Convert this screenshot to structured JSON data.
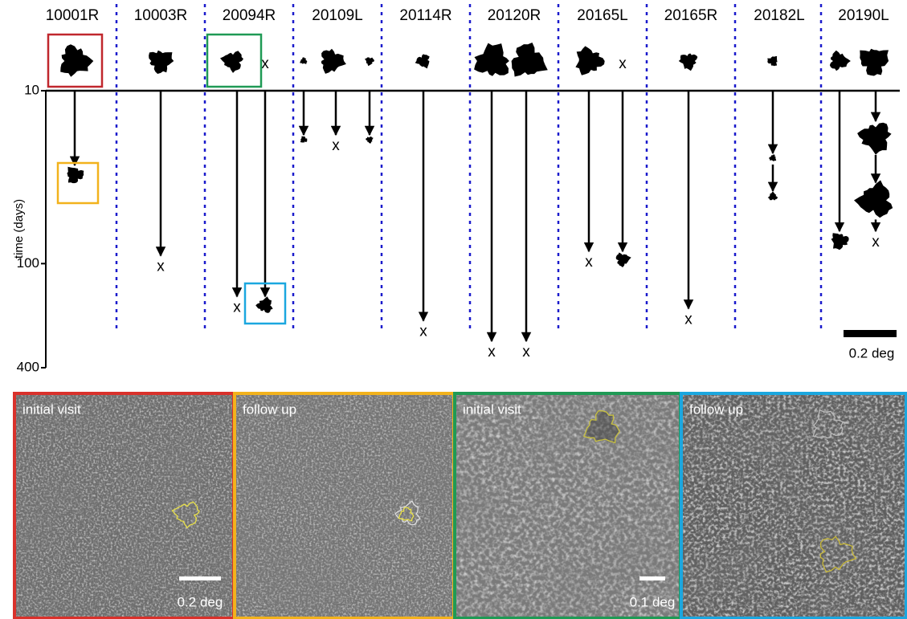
{
  "timeline": {
    "axis_label": "time (days)",
    "log_scale": true,
    "ylim": [
      10,
      400
    ],
    "yticks": [
      10,
      100,
      400
    ],
    "scale_bar": "0.2 deg",
    "columns": [
      {
        "label": "10001R",
        "tracks": [
          {
            "times": [
              27
            ]
          }
        ]
      },
      {
        "label": "10003R",
        "tracks": [
          {
            "times": [
              90
            ],
            "end_label": "x"
          }
        ]
      },
      {
        "label": "20094R",
        "tracks": [
          {
            "times": [
              155
            ],
            "end_label": "x"
          },
          {
            "times": [
              155
            ],
            "initial_label": "x"
          }
        ]
      },
      {
        "label": "20109L",
        "tracks": [
          {
            "times": [
              18
            ]
          },
          {
            "times": [
              18
            ],
            "end_label": "x"
          },
          {
            "times": [
              18
            ]
          }
        ]
      },
      {
        "label": "20114R",
        "tracks": [
          {
            "times": [
              214
            ],
            "end_label": "x"
          }
        ]
      },
      {
        "label": "20120R",
        "tracks": [
          {
            "times": [
              281
            ],
            "end_label": "x"
          },
          {
            "times": [
              281
            ],
            "end_label": "x"
          }
        ]
      },
      {
        "label": "20165L",
        "tracks": [
          {
            "times": [
              85
            ],
            "end_label": "x"
          },
          {
            "times": [
              85
            ],
            "initial_label": "x"
          }
        ]
      },
      {
        "label": "20165R",
        "tracks": [
          {
            "times": [
              182
            ],
            "end_label": "x"
          }
        ]
      },
      {
        "label": "20182L",
        "tracks": [
          {
            "times": [
              23,
              38
            ]
          }
        ]
      },
      {
        "label": "20190L",
        "tracks": [
          {
            "times": [
              65
            ]
          },
          {
            "times": [
              15,
              34,
              65
            ],
            "end_label": "x"
          }
        ]
      }
    ]
  },
  "panels": [
    {
      "label": "initial visit",
      "scale_bar": "0.2 deg"
    },
    {
      "label": "follow up"
    },
    {
      "label": "initial visit",
      "scale_bar": "0.1 deg"
    },
    {
      "label": "follow up"
    }
  ]
}
